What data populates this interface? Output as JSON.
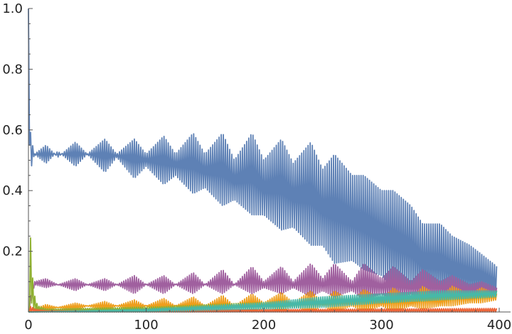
{
  "chart_data": {
    "type": "line",
    "title": "",
    "xlabel": "",
    "ylabel": "",
    "xlim": [
      0,
      400
    ],
    "ylim": [
      0,
      1.0
    ],
    "x_ticks": [
      "0",
      "100",
      "200",
      "300",
      "400"
    ],
    "y_ticks": [
      "0.2",
      "0.4",
      "0.6",
      "0.8",
      "1.0"
    ],
    "grid": false,
    "legend": "none",
    "description_of_series": "rapidly oscillating traces, modulated envelopes",
    "series": [
      {
        "color": "#5E81B5",
        "envelope_x": [
          0,
          1,
          2,
          5,
          15,
          25,
          40,
          50,
          65,
          75,
          90,
          100,
          115,
          125,
          140,
          150,
          165,
          175,
          190,
          200,
          215,
          225,
          240,
          250,
          260,
          275,
          285,
          300,
          310,
          325,
          335,
          350,
          360,
          375,
          385,
          398
        ],
        "envelope_min": [
          1.0,
          0.5,
          0.47,
          0.52,
          0.49,
          0.53,
          0.48,
          0.52,
          0.46,
          0.51,
          0.44,
          0.48,
          0.42,
          0.45,
          0.39,
          0.41,
          0.35,
          0.37,
          0.32,
          0.32,
          0.27,
          0.28,
          0.22,
          0.22,
          0.16,
          0.17,
          0.14,
          0.12,
          0.08,
          0.07,
          0.05,
          0.04,
          0.04,
          0.03,
          0.05,
          0.04
        ],
        "envelope_max": [
          1.0,
          0.64,
          0.58,
          0.52,
          0.55,
          0.51,
          0.56,
          0.52,
          0.57,
          0.52,
          0.57,
          0.52,
          0.58,
          0.52,
          0.59,
          0.52,
          0.59,
          0.5,
          0.59,
          0.5,
          0.57,
          0.49,
          0.56,
          0.47,
          0.52,
          0.45,
          0.45,
          0.4,
          0.4,
          0.35,
          0.29,
          0.29,
          0.25,
          0.22,
          0.19,
          0.15
        ]
      },
      {
        "color": "#A0609F",
        "envelope_x": [
          0,
          2,
          5,
          15,
          25,
          40,
          50,
          65,
          75,
          90,
          100,
          115,
          125,
          140,
          150,
          165,
          175,
          190,
          200,
          215,
          225,
          240,
          250,
          260,
          275,
          285,
          300,
          310,
          325,
          335,
          350,
          360,
          375,
          385,
          398
        ],
        "envelope_min": [
          0.0,
          0.02,
          0.09,
          0.08,
          0.09,
          0.07,
          0.09,
          0.07,
          0.09,
          0.06,
          0.09,
          0.06,
          0.09,
          0.06,
          0.09,
          0.06,
          0.09,
          0.06,
          0.08,
          0.06,
          0.08,
          0.05,
          0.07,
          0.05,
          0.07,
          0.04,
          0.06,
          0.04,
          0.06,
          0.04,
          0.06,
          0.04,
          0.06,
          0.05,
          0.05
        ],
        "envelope_max": [
          0.0,
          0.06,
          0.1,
          0.11,
          0.09,
          0.11,
          0.09,
          0.11,
          0.09,
          0.12,
          0.09,
          0.12,
          0.09,
          0.13,
          0.09,
          0.14,
          0.09,
          0.15,
          0.1,
          0.15,
          0.1,
          0.16,
          0.11,
          0.16,
          0.1,
          0.16,
          0.11,
          0.15,
          0.1,
          0.14,
          0.1,
          0.12,
          0.09,
          0.1,
          0.08
        ]
      },
      {
        "color": "#EE9E1C",
        "envelope_x": [
          0,
          5,
          15,
          25,
          40,
          50,
          65,
          75,
          90,
          100,
          115,
          125,
          140,
          150,
          165,
          175,
          190,
          200,
          215,
          225,
          240,
          250,
          260,
          275,
          285,
          300,
          310,
          325,
          335,
          350,
          360,
          375,
          385,
          398
        ],
        "envelope_min": [
          0.0,
          0.01,
          0.005,
          0.015,
          0.005,
          0.02,
          0.005,
          0.02,
          0.005,
          0.02,
          0.0,
          0.02,
          0.0,
          0.02,
          0.0,
          0.02,
          0.0,
          0.02,
          0.0,
          0.02,
          0.0,
          0.02,
          0.0,
          0.02,
          0.0,
          0.02,
          0.0,
          0.02,
          0.01,
          0.02,
          0.02,
          0.03,
          0.03,
          0.04
        ],
        "envelope_max": [
          0.0,
          0.01,
          0.025,
          0.015,
          0.03,
          0.02,
          0.035,
          0.02,
          0.04,
          0.02,
          0.045,
          0.02,
          0.05,
          0.02,
          0.055,
          0.02,
          0.06,
          0.03,
          0.065,
          0.03,
          0.07,
          0.03,
          0.07,
          0.035,
          0.075,
          0.04,
          0.08,
          0.04,
          0.085,
          0.05,
          0.085,
          0.06,
          0.08,
          0.06
        ]
      },
      {
        "color": "#8FB032",
        "envelope_x": [
          0,
          1,
          2,
          3,
          4,
          6,
          8,
          15,
          25,
          40,
          50,
          65,
          75,
          90,
          100,
          115,
          125,
          140,
          150,
          165,
          175,
          190,
          200,
          215,
          225,
          240,
          250,
          260,
          275,
          285,
          300,
          310,
          325,
          335,
          350,
          360,
          375,
          385,
          398
        ],
        "envelope_min": [
          0.0,
          0.0,
          0.05,
          0.02,
          0.01,
          0.005,
          0.003,
          0.003,
          0.003,
          0.003,
          0.003,
          0.003,
          0.003,
          0.003,
          0.003,
          0.003,
          0.005,
          0.005,
          0.005,
          0.005,
          0.008,
          0.008,
          0.01,
          0.01,
          0.015,
          0.015,
          0.02,
          0.02,
          0.025,
          0.025,
          0.03,
          0.03,
          0.035,
          0.035,
          0.04,
          0.04,
          0.045,
          0.045,
          0.05
        ],
        "envelope_max": [
          0.0,
          0.18,
          0.26,
          0.16,
          0.08,
          0.04,
          0.02,
          0.01,
          0.01,
          0.012,
          0.012,
          0.014,
          0.014,
          0.016,
          0.016,
          0.018,
          0.02,
          0.022,
          0.024,
          0.026,
          0.028,
          0.03,
          0.032,
          0.034,
          0.036,
          0.04,
          0.042,
          0.045,
          0.048,
          0.05,
          0.052,
          0.055,
          0.058,
          0.06,
          0.062,
          0.064,
          0.066,
          0.068,
          0.07
        ]
      },
      {
        "color": "#EB6235",
        "envelope_x": [
          0,
          2,
          5,
          15,
          40,
          100,
          200,
          300,
          398
        ],
        "envelope_min": [
          0.0,
          0.0,
          0.0,
          0.0,
          0.0,
          0.0,
          0.0,
          0.0,
          0.0
        ],
        "envelope_max": [
          0.0,
          0.02,
          0.01,
          0.005,
          0.005,
          0.005,
          0.008,
          0.01,
          0.012
        ]
      },
      {
        "color": "#47B8A8",
        "envelope_x": [
          0,
          50,
          100,
          150,
          200,
          250,
          300,
          350,
          398
        ],
        "envelope_min": [
          0.0,
          0.0,
          0.0,
          0.005,
          0.01,
          0.015,
          0.03,
          0.04,
          0.05
        ],
        "envelope_max": [
          0.0,
          0.005,
          0.01,
          0.02,
          0.03,
          0.05,
          0.06,
          0.07,
          0.07
        ]
      }
    ]
  }
}
